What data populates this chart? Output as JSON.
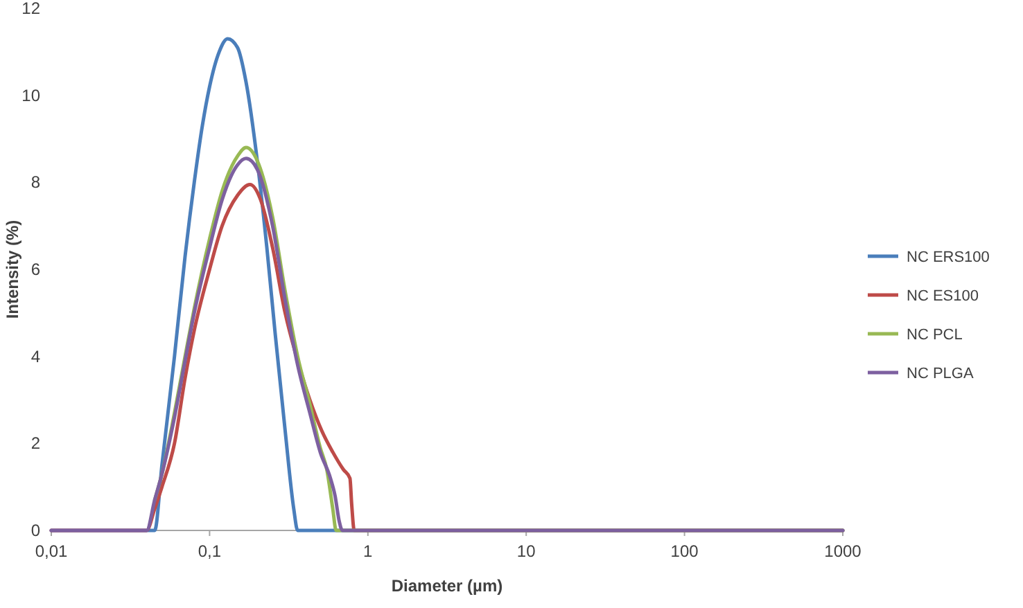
{
  "chart_data": {
    "type": "line",
    "xlabel": "Diameter (µm)",
    "ylabel": "Intensity (%)",
    "log": "x",
    "xlim": [
      0.01,
      1000
    ],
    "xticks": [
      {
        "value": 0.01,
        "label": "0,01"
      },
      {
        "value": 0.1,
        "label": "0,1"
      },
      1,
      10,
      100,
      1000
    ],
    "ylim": [
      0,
      12
    ],
    "yticks": [
      0,
      2,
      4,
      6,
      8,
      10,
      12
    ],
    "grid": false,
    "legend": "right",
    "marker": "none",
    "line_style": "solid",
    "series": [
      {
        "name": "NC ERS100",
        "color": "#4a7ebb",
        "x": [
          0.01,
          0.045,
          0.05,
          0.06,
          0.07,
          0.08,
          0.09,
          0.1,
          0.115,
          0.13,
          0.15,
          0.17,
          0.2,
          0.23,
          0.26,
          0.3,
          0.34,
          0.36,
          1000
        ],
        "values": [
          0,
          0,
          1.5,
          4,
          6.3,
          8,
          9.3,
          10.2,
          11,
          11.3,
          11.1,
          10.3,
          8.5,
          6.5,
          4.5,
          2.3,
          0.5,
          0,
          0
        ]
      },
      {
        "name": "NC ES100",
        "color": "#be4b48",
        "x": [
          0.01,
          0.04,
          0.045,
          0.05,
          0.06,
          0.07,
          0.08,
          0.1,
          0.12,
          0.15,
          0.18,
          0.21,
          0.25,
          0.3,
          0.36,
          0.43,
          0.51,
          0.6,
          0.7,
          0.77,
          0.79,
          0.82,
          1000
        ],
        "values": [
          0,
          0,
          0.5,
          1,
          2,
          3.5,
          4.6,
          6,
          7,
          7.7,
          7.95,
          7.6,
          6.5,
          5,
          3.9,
          3,
          2.3,
          1.8,
          1.4,
          1.2,
          0.6,
          0,
          0
        ]
      },
      {
        "name": "NC PCL",
        "color": "#98b954",
        "x": [
          0.045,
          0.05,
          0.06,
          0.07,
          0.08,
          0.1,
          0.12,
          0.15,
          0.17,
          0.2,
          0.25,
          0.3,
          0.36,
          0.43,
          0.5,
          0.55,
          0.6,
          0.63,
          1000
        ],
        "values": [
          0.7,
          1.3,
          2.7,
          4,
          5.1,
          6.7,
          7.8,
          8.6,
          8.8,
          8.5,
          7.2,
          5.5,
          4,
          2.9,
          1.9,
          1.4,
          0.5,
          0,
          0
        ]
      },
      {
        "name": "NC PLGA",
        "color": "#7d60a0",
        "x": [
          0.01,
          0.04,
          0.045,
          0.05,
          0.06,
          0.07,
          0.08,
          0.1,
          0.12,
          0.15,
          0.17,
          0.2,
          0.25,
          0.3,
          0.36,
          0.43,
          0.5,
          0.58,
          0.62,
          0.66,
          0.69,
          1000
        ],
        "values": [
          0,
          0,
          0.7,
          1.3,
          2.6,
          3.9,
          5,
          6.5,
          7.6,
          8.4,
          8.55,
          8.3,
          7,
          5.3,
          3.8,
          2.7,
          1.8,
          1.2,
          0.8,
          0.2,
          0,
          0
        ]
      }
    ]
  }
}
